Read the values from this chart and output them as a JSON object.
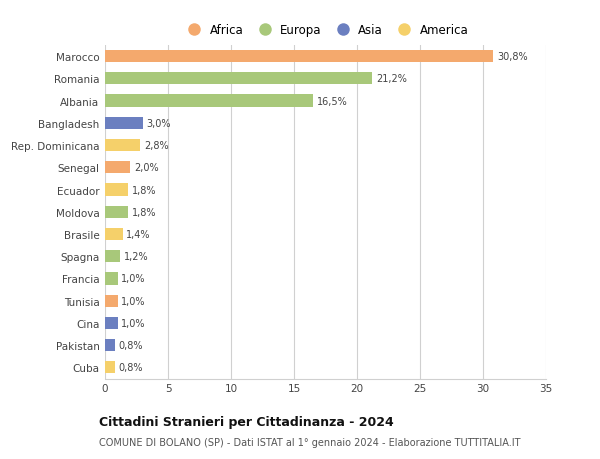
{
  "countries": [
    "Marocco",
    "Romania",
    "Albania",
    "Bangladesh",
    "Rep. Dominicana",
    "Senegal",
    "Ecuador",
    "Moldova",
    "Brasile",
    "Spagna",
    "Francia",
    "Tunisia",
    "Cina",
    "Pakistan",
    "Cuba"
  ],
  "values": [
    30.8,
    21.2,
    16.5,
    3.0,
    2.8,
    2.0,
    1.8,
    1.8,
    1.4,
    1.2,
    1.0,
    1.0,
    1.0,
    0.8,
    0.8
  ],
  "labels": [
    "30,8%",
    "21,2%",
    "16,5%",
    "3,0%",
    "2,8%",
    "2,0%",
    "1,8%",
    "1,8%",
    "1,4%",
    "1,2%",
    "1,0%",
    "1,0%",
    "1,0%",
    "0,8%",
    "0,8%"
  ],
  "continents": [
    "Africa",
    "Europa",
    "Europa",
    "Asia",
    "America",
    "Africa",
    "America",
    "Europa",
    "America",
    "Europa",
    "Europa",
    "Africa",
    "Asia",
    "Asia",
    "America"
  ],
  "colors": {
    "Africa": "#F4A96D",
    "Europa": "#A8C87A",
    "Asia": "#6B7FC0",
    "America": "#F5D06A"
  },
  "legend_order": [
    "Africa",
    "Europa",
    "Asia",
    "America"
  ],
  "title": "Cittadini Stranieri per Cittadinanza - 2024",
  "subtitle": "COMUNE DI BOLANO (SP) - Dati ISTAT al 1° gennaio 2024 - Elaborazione TUTTITALIA.IT",
  "xlim": [
    0,
    35
  ],
  "xticks": [
    0,
    5,
    10,
    15,
    20,
    25,
    30,
    35
  ],
  "background_color": "#ffffff",
  "grid_color": "#d0d0d0",
  "bar_height": 0.55
}
